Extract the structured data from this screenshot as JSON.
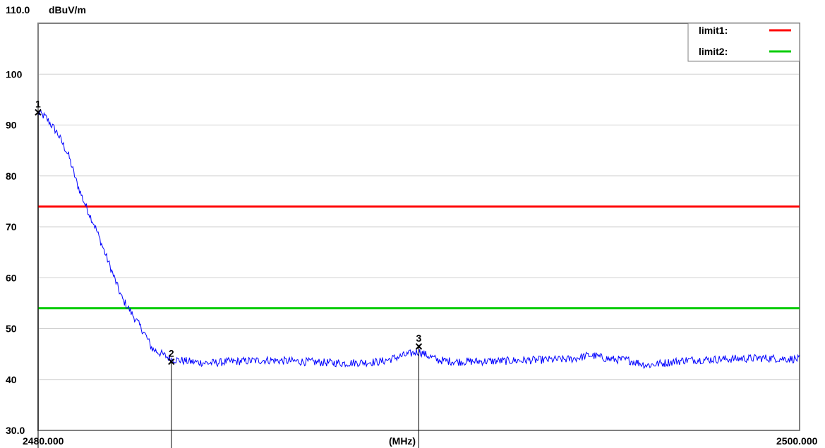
{
  "chart_data": {
    "type": "line",
    "y_top_label": "110.0",
    "y_unit": "dBuV/m",
    "x_start_label": "2480.000",
    "x_unit": "(MHz)",
    "x_end_label": "2500.000",
    "ylim": [
      30,
      110
    ],
    "xlim": [
      2480,
      2500
    ],
    "y_ticks": [
      {
        "value": 100,
        "label": "100"
      },
      {
        "value": 90,
        "label": "90"
      },
      {
        "value": 80,
        "label": "80"
      },
      {
        "value": 70,
        "label": "70"
      },
      {
        "value": 60,
        "label": "60"
      },
      {
        "value": 50,
        "label": "50"
      },
      {
        "value": 40,
        "label": "40"
      },
      {
        "value": 30,
        "label": "30.0"
      }
    ],
    "grid": true,
    "limits": [
      {
        "name": "limit1:",
        "value": 74,
        "color": "#ff0000"
      },
      {
        "name": "limit2:",
        "value": 54,
        "color": "#00cc00"
      }
    ],
    "legend_position": "top-right",
    "series": [
      {
        "color": "#0000ff",
        "x": [
          2480.0,
          2480.2,
          2480.5,
          2480.8,
          2481.0,
          2481.2,
          2481.5,
          2481.8,
          2482.0,
          2482.2,
          2482.5,
          2482.8,
          2483.0,
          2483.5,
          2484.0,
          2484.5,
          2485.0,
          2486.0,
          2487.0,
          2488.0,
          2489.0,
          2490.0,
          2490.5,
          2491.0,
          2492.0,
          2493.0,
          2494.0,
          2494.5,
          2495.0,
          2495.5,
          2496.0,
          2497.0,
          2498.0,
          2499.0,
          2500.0
        ],
        "y": [
          92.5,
          91.5,
          88.5,
          84,
          79,
          75,
          70,
          64,
          60,
          56,
          52.5,
          49,
          46,
          44,
          43.5,
          43.2,
          43.5,
          43.8,
          43.5,
          43.2,
          43.5,
          45.5,
          43.8,
          43.5,
          43.6,
          43.8,
          44,
          44.8,
          44,
          43.8,
          42.8,
          43.8,
          44,
          44.2,
          44
        ]
      }
    ],
    "markers": [
      {
        "label": "1",
        "x": 2480.0,
        "y": 92.5
      },
      {
        "label": "2",
        "x": 2483.5,
        "y": 43.5
      },
      {
        "label": "3",
        "x": 2490.0,
        "y": 46.5
      }
    ]
  }
}
